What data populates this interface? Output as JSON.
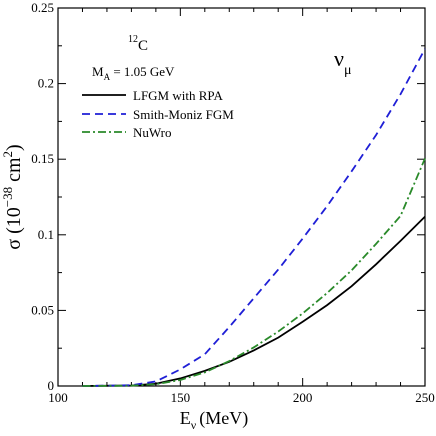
{
  "chart_data": {
    "type": "line",
    "xlabel": "E",
    "xlabel_sub": "ν",
    "xlabel_unit": "(MeV)",
    "ylabel_parts": [
      "σ (10",
      "−38",
      " cm",
      "2",
      ")"
    ],
    "xlim": [
      100,
      250
    ],
    "ylim": [
      0,
      0.25
    ],
    "xticks": [
      100,
      150,
      200,
      250
    ],
    "yticks": [
      0,
      0.05,
      0.1,
      0.15,
      0.2,
      0.25
    ],
    "xtick_labels": [
      "100",
      "150",
      "200",
      "250"
    ],
    "ytick_labels": [
      "0",
      "0.05",
      "0.1",
      "0.15",
      "0.2",
      "0.25"
    ],
    "grid": false,
    "legend_position": "top-left",
    "annotations": {
      "nucleus_mass": "12",
      "nucleus_symbol": "C",
      "ma_label": "M",
      "ma_sub": "A",
      "ma_value": " = 1.05 GeV",
      "flavor": "ν",
      "flavor_sub": "μ"
    },
    "series": [
      {
        "name": "LFGM with RPA",
        "color": "#000000",
        "dash": "solid",
        "x": [
          110,
          130,
          140,
          150,
          160,
          170,
          180,
          190,
          200,
          210,
          220,
          230,
          240,
          250
        ],
        "y": [
          0.0,
          0.0003,
          0.0015,
          0.005,
          0.01,
          0.016,
          0.0235,
          0.032,
          0.0425,
          0.0535,
          0.066,
          0.0805,
          0.096,
          0.112
        ]
      },
      {
        "name": "Smith-Moniz FGM",
        "color": "#1f1fd6",
        "dash": "dashed",
        "x": [
          110,
          130,
          140,
          150,
          160,
          170,
          180,
          190,
          200,
          210,
          220,
          230,
          240,
          250
        ],
        "y": [
          0.0,
          0.0005,
          0.003,
          0.011,
          0.021,
          0.039,
          0.058,
          0.077,
          0.0975,
          0.119,
          0.142,
          0.166,
          0.193,
          0.223
        ]
      },
      {
        "name": "NuWro",
        "color": "#2a8a2a",
        "dash": "dashdot",
        "x": [
          110,
          130,
          140,
          150,
          160,
          170,
          180,
          190,
          200,
          210,
          220,
          230,
          240,
          250
        ],
        "y": [
          0.0,
          0.0002,
          0.0012,
          0.004,
          0.009,
          0.0165,
          0.0255,
          0.036,
          0.048,
          0.0615,
          0.0765,
          0.094,
          0.1125,
          0.1505
        ]
      }
    ]
  }
}
